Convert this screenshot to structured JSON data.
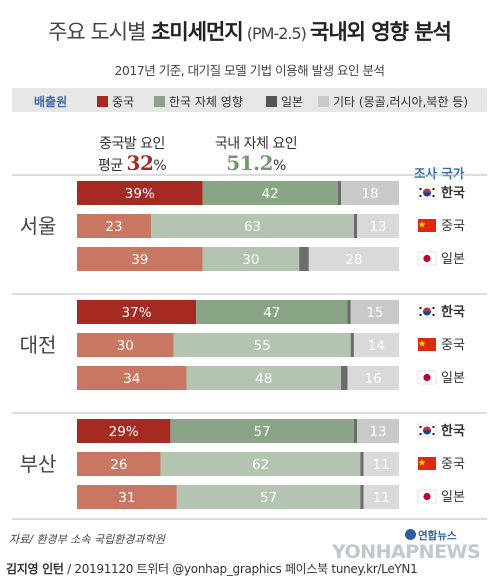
{
  "title": {
    "part1": "주요 도시별 ",
    "part2": "초미세먼지",
    "part3": " (PM-2.5) ",
    "part4": "국내외 영향 분석"
  },
  "subtitle": "2017년 기준, 대기질 모델 기법 이용해 발생 요인 분석",
  "legend": {
    "title": "배출원",
    "items": [
      {
        "label": "중국",
        "color": "#a52a22"
      },
      {
        "label": "한국 자체 영향",
        "color": "#8aa486"
      },
      {
        "label": "일본",
        "color": "#555555"
      },
      {
        "label": "기타 (몽골,러시아,북한 등)",
        "color": "#c8c8c8"
      }
    ]
  },
  "averages": {
    "china_label": "중국발 요인",
    "china_prefix": "평균 ",
    "china_value": "32",
    "domestic_label": "국내 자체 요인",
    "domestic_value": "51.2",
    "percent": "%"
  },
  "survey_label": "조사 국가",
  "chart_data": {
    "type": "bar",
    "orientation": "horizontal-stacked-100",
    "cities": [
      "서울",
      "대전",
      "부산"
    ],
    "countries": [
      "한국",
      "중국",
      "일본"
    ],
    "segment_names": [
      "중국",
      "한국 자체 영향",
      "일본",
      "기타"
    ],
    "colors": {
      "china_korea": "#a52a22",
      "china_other": "#c97763",
      "korea_korea": "#8aa486",
      "korea_other": "#b3c4b0",
      "japan": "#6b6b6b",
      "other": "#c9c9c9",
      "other_light": "#d9d9d9"
    },
    "groups": [
      {
        "city": "서울",
        "rows": [
          {
            "country": "한국",
            "china": 39,
            "korea": 42,
            "japan": 1,
            "other": 18,
            "china_label": "39%"
          },
          {
            "country": "중국",
            "china": 23,
            "korea": 63,
            "japan": 1,
            "other": 13,
            "china_label": "23"
          },
          {
            "country": "일본",
            "china": 39,
            "korea": 30,
            "japan": 3,
            "other": 28,
            "china_label": "39"
          }
        ]
      },
      {
        "city": "대전",
        "rows": [
          {
            "country": "한국",
            "china": 37,
            "korea": 47,
            "japan": 1,
            "other": 15,
            "china_label": "37%"
          },
          {
            "country": "중국",
            "china": 30,
            "korea": 55,
            "japan": 1,
            "other": 14,
            "china_label": "30"
          },
          {
            "country": "일본",
            "china": 34,
            "korea": 48,
            "japan": 2,
            "other": 16,
            "china_label": "34"
          }
        ]
      },
      {
        "city": "부산",
        "rows": [
          {
            "country": "한국",
            "china": 29,
            "korea": 57,
            "japan": 1,
            "other": 13,
            "china_label": "29%"
          },
          {
            "country": "중국",
            "china": 26,
            "korea": 62,
            "japan": 1,
            "other": 11,
            "china_label": "26"
          },
          {
            "country": "일본",
            "china": 31,
            "korea": 57,
            "japan": 1,
            "other": 11,
            "china_label": "31"
          }
        ]
      }
    ]
  },
  "footer": {
    "source": "자료/ 환경부 소속 국립환경과학원",
    "author": "김지영 인턴",
    "credit": " / 20191120 트위터 @yonhap_graphics  페이스북 tuney.kr/LeYN1",
    "logo_small": "연합뉴스",
    "logo_big": "YONHAPNEWS"
  }
}
